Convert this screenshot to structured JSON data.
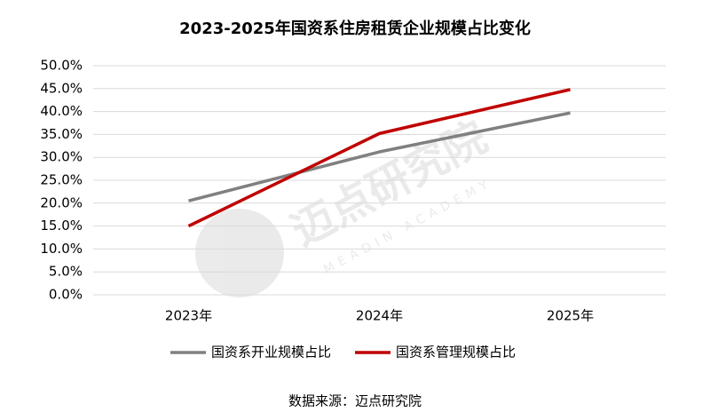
{
  "chart_data": {
    "type": "line",
    "title": "2023-2025年国资系住房租赁企业规模占比变化",
    "categories": [
      "2023年",
      "2024年",
      "2025年"
    ],
    "series": [
      {
        "name": "国资系开业规模占比",
        "color": "#808080",
        "values": [
          20.5,
          31.2,
          39.7
        ]
      },
      {
        "name": "国资系管理规模占比",
        "color": "#c00000",
        "values": [
          15.0,
          35.2,
          44.8
        ]
      }
    ],
    "ylim": [
      0,
      50
    ],
    "yticks": [
      {
        "value": 0,
        "label": "0.0%"
      },
      {
        "value": 5,
        "label": "5.0%"
      },
      {
        "value": 10,
        "label": "10.0%"
      },
      {
        "value": 15,
        "label": "15.0%"
      },
      {
        "value": 20,
        "label": "20.0%"
      },
      {
        "value": 25,
        "label": "25.0%"
      },
      {
        "value": 30,
        "label": "30.0%"
      },
      {
        "value": 35,
        "label": "35.0%"
      },
      {
        "value": 40,
        "label": "40.0%"
      },
      {
        "value": 45,
        "label": "45.0%"
      },
      {
        "value": 50,
        "label": "50.0%"
      }
    ],
    "grid": true,
    "legend": "bottom",
    "source": "数据来源：迈点研究院",
    "watermark": "迈点研究院",
    "watermark_sub": "MEADIN ACADEMY"
  }
}
